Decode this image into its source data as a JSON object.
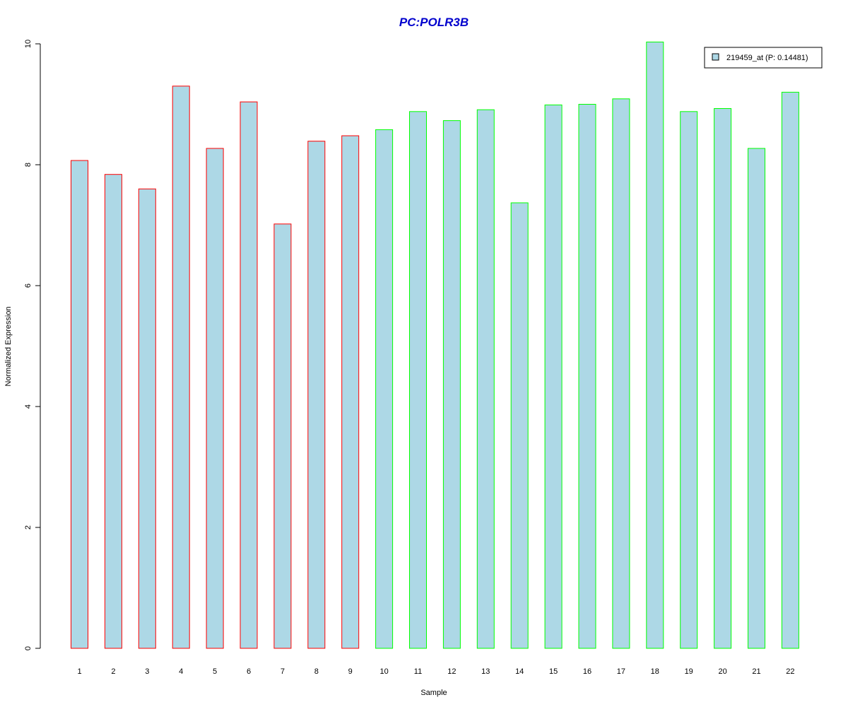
{
  "chart_data": {
    "type": "bar",
    "title": "PC:POLR3B",
    "xlabel": "Sample",
    "ylabel": "Normalized Expression",
    "ylim": [
      0,
      10
    ],
    "yticks": [
      0,
      2,
      4,
      6,
      8,
      10
    ],
    "categories": [
      "1",
      "2",
      "3",
      "4",
      "5",
      "6",
      "7",
      "8",
      "9",
      "10",
      "11",
      "12",
      "13",
      "14",
      "15",
      "16",
      "17",
      "18",
      "19",
      "20",
      "21",
      "22"
    ],
    "series": [
      {
        "name": "219459_at (P: 0.14481)",
        "values": [
          8.07,
          7.84,
          7.6,
          9.3,
          8.27,
          9.04,
          7.02,
          8.39,
          8.48,
          8.58,
          8.88,
          8.73,
          8.91,
          7.37,
          8.99,
          9.0,
          9.09,
          10.03,
          8.88,
          8.93,
          8.27,
          9.2
        ]
      }
    ],
    "groups": [
      "red",
      "red",
      "red",
      "red",
      "red",
      "red",
      "red",
      "red",
      "red",
      "green",
      "green",
      "green",
      "green",
      "green",
      "green",
      "green",
      "green",
      "green",
      "green",
      "green",
      "green",
      "green"
    ],
    "legend_position": "top-right",
    "grid": false,
    "colors": {
      "fill": "#add8e6",
      "red": "#ff0000",
      "green": "#00ff00",
      "title": "#0000cd",
      "axis": "#000000"
    }
  }
}
